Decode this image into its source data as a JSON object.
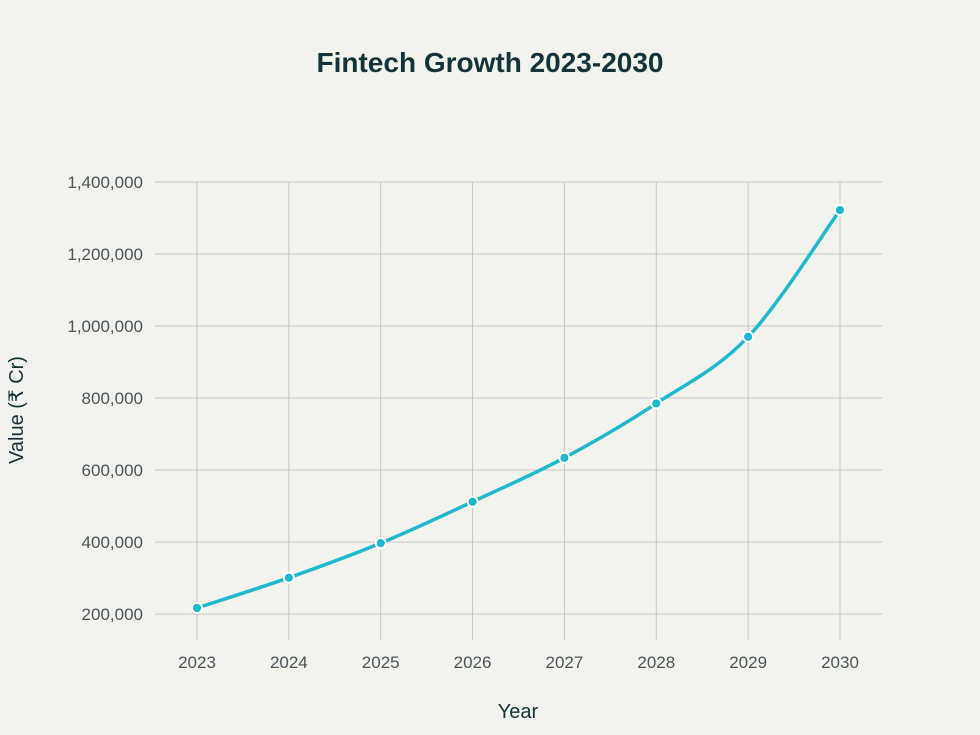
{
  "chart_data": {
    "type": "line",
    "title": "Fintech Growth 2023-2030",
    "xlabel": "Year",
    "ylabel": "Value (₹ Cr)",
    "x": [
      "2023",
      "2024",
      "2025",
      "2026",
      "2027",
      "2028",
      "2029",
      "2030"
    ],
    "series": [
      {
        "values": [
          217000,
          301000,
          397000,
          512000,
          634000,
          785000,
          970000,
          1322000
        ],
        "color": "#1fb8cd"
      }
    ],
    "yticks": [
      200000,
      400000,
      600000,
      800000,
      1000000,
      1200000,
      1400000
    ],
    "ytick_labels": [
      "200,000",
      "400,000",
      "600,000",
      "800,000",
      "1,000,000",
      "1,200,000",
      "1,400,000"
    ],
    "ylim": [
      128000,
      1400000
    ],
    "grid": true,
    "legend": "none",
    "background": "#f3f3ee"
  }
}
